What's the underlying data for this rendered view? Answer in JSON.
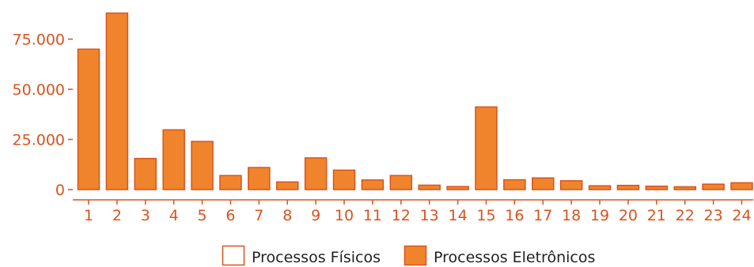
{
  "chart_data": {
    "type": "bar",
    "title": "",
    "xlabel": "",
    "ylabel": "",
    "categories": [
      "1",
      "2",
      "3",
      "4",
      "5",
      "6",
      "7",
      "8",
      "9",
      "10",
      "11",
      "12",
      "13",
      "14",
      "15",
      "16",
      "17",
      "18",
      "19",
      "20",
      "21",
      "22",
      "23",
      "24"
    ],
    "series": [
      {
        "name": "Processos Físicos",
        "values": [
          0,
          0,
          0,
          0,
          0,
          0,
          0,
          0,
          0,
          0,
          0,
          0,
          0,
          0,
          0,
          0,
          0,
          0,
          0,
          0,
          0,
          0,
          0,
          0
        ]
      },
      {
        "name": "Processos Eletrônicos",
        "values": [
          70000,
          88000,
          15500,
          29800,
          24000,
          7000,
          11000,
          3800,
          15800,
          9700,
          4800,
          7000,
          2200,
          1500,
          41200,
          4900,
          5800,
          4400,
          1900,
          2100,
          1700,
          1400,
          2700,
          3400
        ]
      }
    ],
    "y_ticks": [
      0,
      25000,
      50000,
      75000
    ],
    "y_tick_labels": [
      "0",
      "25.000",
      "50.000",
      "75.000"
    ],
    "ylim": [
      0,
      89000
    ],
    "grid": false,
    "legend_position": "bottom-right",
    "colors": {
      "bar_fill": "#f0842c",
      "bar_stroke": "#d9531e",
      "axis": "#d9531e",
      "legend_text": "#222222"
    }
  }
}
